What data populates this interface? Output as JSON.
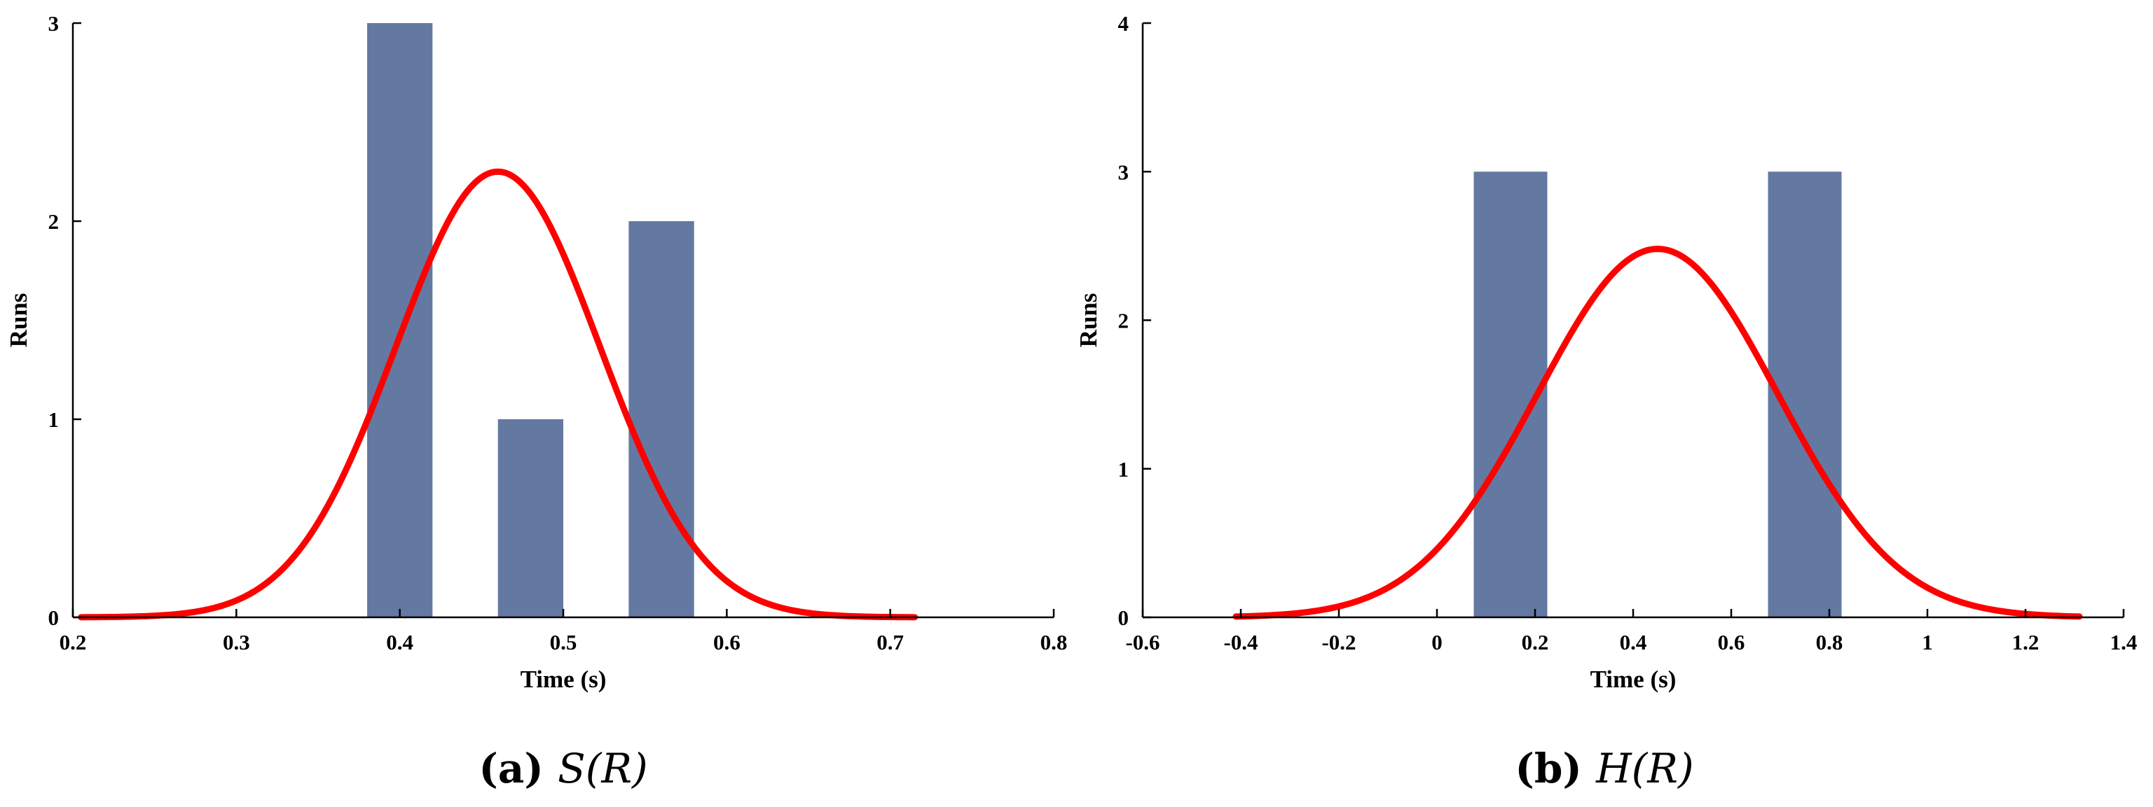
{
  "colors": {
    "bar": "#6479a1",
    "curve": "#ff0000",
    "axis": "#000000"
  },
  "chart_data": [
    {
      "type": "bar",
      "xlabel": "Time (s)",
      "ylabel": "Runs",
      "xlim": [
        0.2,
        0.8
      ],
      "ylim": [
        0,
        3
      ],
      "xticks": [
        0.2,
        0.3,
        0.4,
        0.5,
        0.6,
        0.7,
        0.8
      ],
      "xtick_labels": [
        "0.2",
        "0.3",
        "0.4",
        "0.5",
        "0.6",
        "0.7",
        "0.8"
      ],
      "yticks": [
        0,
        1,
        2,
        3
      ],
      "ytick_labels": [
        "0",
        "1",
        "2",
        "3"
      ],
      "bars": [
        {
          "x_start": 0.38,
          "x_end": 0.42,
          "value": 3
        },
        {
          "x_start": 0.46,
          "x_end": 0.5,
          "value": 1
        },
        {
          "x_start": 0.54,
          "x_end": 0.58,
          "value": 2
        }
      ],
      "fit_curve": {
        "type": "normal",
        "mean": 0.46,
        "std": 0.0625,
        "peak": 2.25,
        "x_range": [
          0.205,
          0.715
        ]
      },
      "grid": false,
      "caption": {
        "label": "(a)",
        "text": "S(R)"
      }
    },
    {
      "type": "bar",
      "xlabel": "Time (s)",
      "ylabel": "Runs",
      "xlim": [
        -0.6,
        1.4
      ],
      "ylim": [
        0,
        4
      ],
      "xticks": [
        -0.6,
        -0.4,
        -0.2,
        0,
        0.2,
        0.4,
        0.6,
        0.8,
        1,
        1.2,
        1.4
      ],
      "xtick_labels": [
        "-0.6",
        "-0.4",
        "-0.2",
        "0",
        "0.2",
        "0.4",
        "0.6",
        "0.8",
        "1",
        "1.2",
        "1.4"
      ],
      "yticks": [
        0,
        1,
        2,
        3,
        4
      ],
      "ytick_labels": [
        "0",
        "1",
        "2",
        "3",
        "4"
      ],
      "bars": [
        {
          "x_start": 0.075,
          "x_end": 0.225,
          "value": 3
        },
        {
          "x_start": 0.675,
          "x_end": 0.825,
          "value": 3
        }
      ],
      "fit_curve": {
        "type": "normal",
        "mean": 0.45,
        "std": 0.245,
        "peak": 2.48,
        "x_range": [
          -0.41,
          1.31
        ]
      },
      "grid": false,
      "caption": {
        "label": "(b)",
        "text": "H(R)"
      }
    }
  ]
}
